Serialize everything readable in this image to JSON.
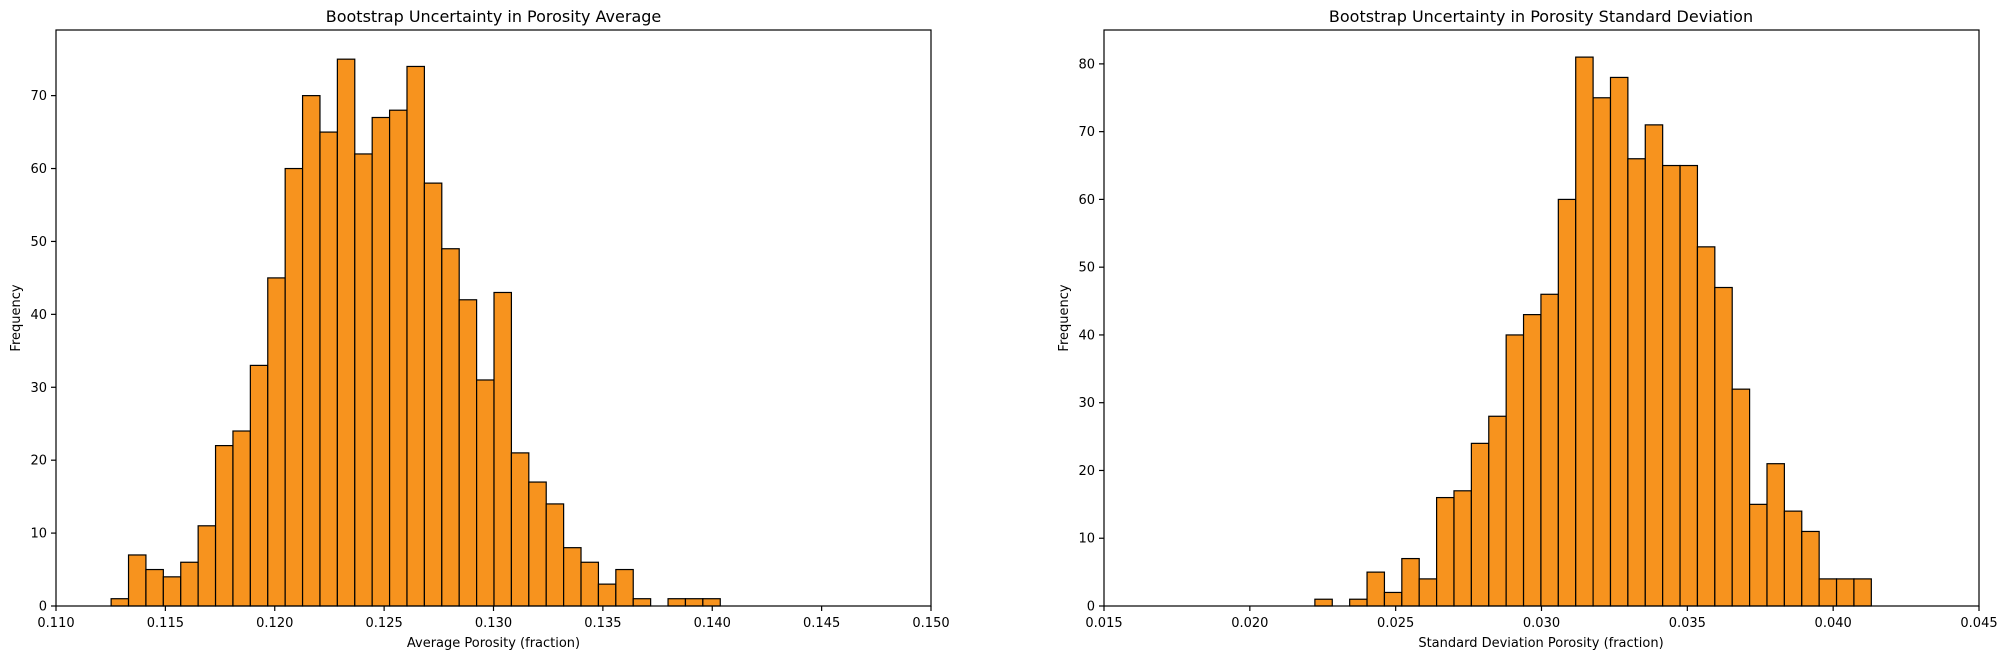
{
  "chart_data": [
    {
      "type": "bar",
      "title": "Bootstrap Uncertainty in Porosity Average",
      "xlabel": "Average Porosity (fraction)",
      "ylabel": "Frequency",
      "xlim": [
        0.11,
        0.15
      ],
      "ylim": [
        0,
        79
      ],
      "bar_color": "#f7931e",
      "edge_color": "#000000",
      "bin_width": 0.0007956,
      "bin_start": 0.11252,
      "values": [
        1,
        7,
        5,
        4,
        6,
        11,
        22,
        24,
        33,
        45,
        60,
        70,
        65,
        75,
        62,
        67,
        68,
        74,
        58,
        49,
        42,
        31,
        43,
        21,
        17,
        14,
        8,
        6,
        3,
        5,
        1,
        0,
        1,
        1,
        1
      ],
      "xticks": [
        0.11,
        0.115,
        0.12,
        0.125,
        0.13,
        0.135,
        0.14,
        0.145,
        0.15
      ],
      "xtick_labels": [
        "0.110",
        "0.115",
        "0.120",
        "0.125",
        "0.130",
        "0.135",
        "0.140",
        "0.145",
        "0.150"
      ],
      "yticks": [
        0,
        10,
        20,
        30,
        40,
        50,
        60,
        70
      ],
      "ytick_labels": [
        "0",
        "10",
        "20",
        "30",
        "40",
        "50",
        "60",
        "70"
      ]
    },
    {
      "type": "bar",
      "title": "Bootstrap Uncertainty in Porosity Standard Deviation",
      "xlabel": "Standard Deviation Porosity (fraction)",
      "ylabel": "Frequency",
      "xlim": [
        0.015,
        0.045
      ],
      "ylim": [
        0,
        85
      ],
      "bar_color": "#f7931e",
      "edge_color": "#000000",
      "bin_width": 0.0005962,
      "bin_start": 0.02223,
      "values": [
        1,
        0,
        1,
        5,
        2,
        7,
        4,
        16,
        17,
        24,
        28,
        40,
        43,
        46,
        60,
        81,
        75,
        78,
        66,
        71,
        65,
        65,
        53,
        47,
        32,
        15,
        21,
        14,
        11,
        4,
        4,
        4
      ],
      "xticks": [
        0.015,
        0.02,
        0.025,
        0.03,
        0.035,
        0.04,
        0.045
      ],
      "xtick_labels": [
        "0.015",
        "0.020",
        "0.025",
        "0.030",
        "0.035",
        "0.040",
        "0.045"
      ],
      "yticks": [
        0,
        10,
        20,
        30,
        40,
        50,
        60,
        70,
        80
      ],
      "ytick_labels": [
        "0",
        "10",
        "20",
        "30",
        "40",
        "50",
        "60",
        "70",
        "80"
      ]
    }
  ]
}
